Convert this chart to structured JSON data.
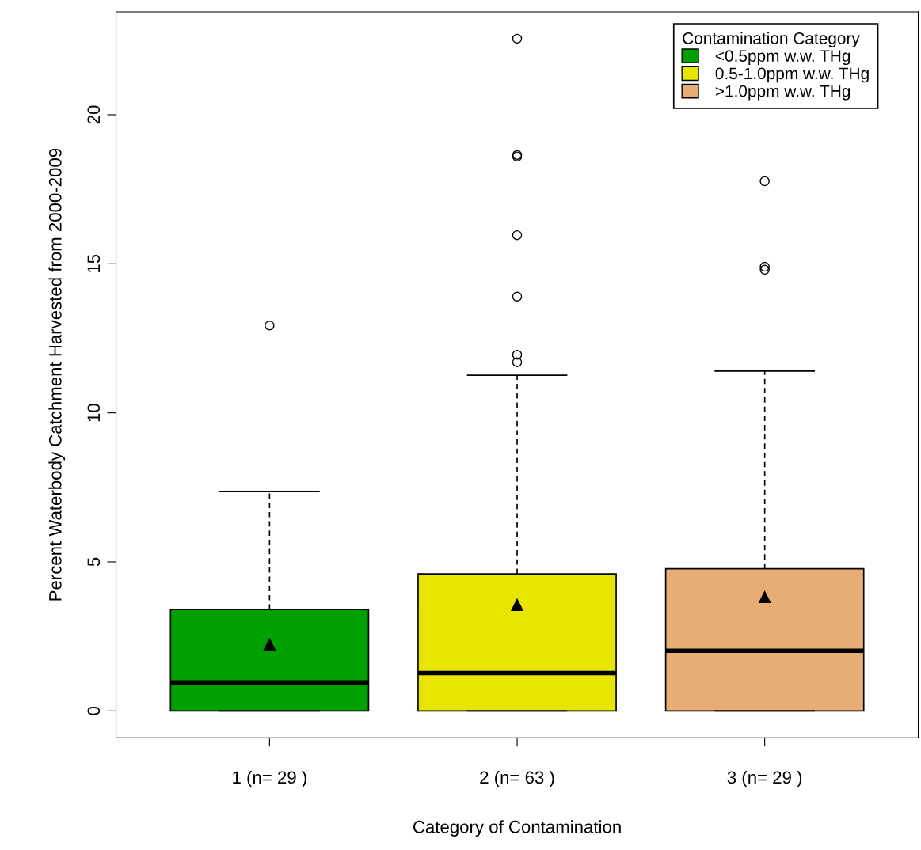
{
  "chart_data": {
    "type": "box",
    "xlabel": "Category of Contamination",
    "ylabel": "Percent Waterbody Catchment Harvested from 2000-2009",
    "legend_title": "Contamination Category",
    "categories": [
      "1 (n= 29 )",
      "2 (n= 63 )",
      "3 (n= 29 )"
    ],
    "series": [
      {
        "name": "<0.5ppm w.w. THg",
        "color": "#00a000",
        "boxes": [
          {
            "low": 0,
            "q1": 0,
            "median": 0.96,
            "q3": 3.4,
            "high": 7.36,
            "mean": 2.23,
            "outliers": [
              12.93
            ]
          },
          null,
          null
        ]
      },
      {
        "name": "0.5-1.0ppm w.w. THg",
        "color": "#e6e600",
        "boxes": [
          null,
          {
            "low": 0,
            "q1": 0,
            "median": 1.27,
            "q3": 4.6,
            "high": 11.26,
            "mean": 3.56,
            "outliers": [
              11.7,
              11.95,
              13.9,
              15.96,
              18.6,
              18.65,
              22.55
            ]
          },
          null
        ]
      },
      {
        "name": ">1.0ppm w.w. THg",
        "color": "#e8ad74",
        "boxes": [
          null,
          null,
          {
            "low": 0,
            "q1": 0,
            "median": 2.02,
            "q3": 4.77,
            "high": 11.4,
            "mean": 3.82,
            "outliers": [
              14.8,
              14.9,
              17.77
            ]
          }
        ]
      }
    ],
    "ylim": [
      -0.9,
      23.45
    ],
    "yticks": [
      0,
      5,
      10,
      15,
      20
    ],
    "marker": "triangle",
    "grid": false,
    "legend": "top right"
  }
}
